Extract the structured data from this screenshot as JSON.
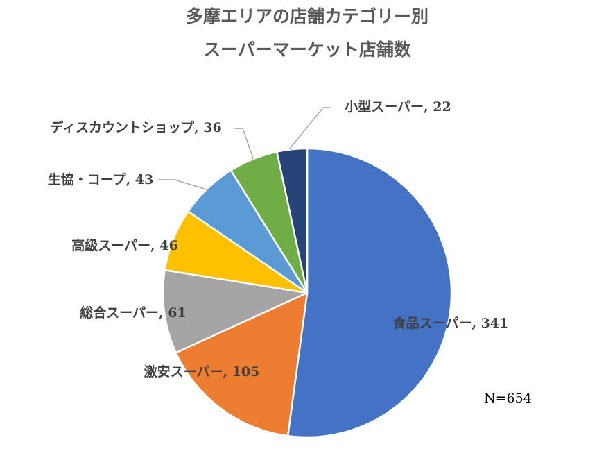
{
  "chart_data": {
    "type": "pie",
    "title": [
      "多摩エリアの店舗カテゴリー別",
      "スーパーマーケット店舗数"
    ],
    "categories": [
      "食品スーパー",
      "激安スーパー",
      "総合スーパー",
      "高級スーパー",
      "生協・コープ",
      "ディスカウントショップ",
      "小型スーパー"
    ],
    "values": [
      341,
      105,
      61,
      46,
      43,
      36,
      22
    ],
    "labels": [
      "食品スーパー, 341",
      "激安スーパー, 105",
      "総合スーパー, 61",
      "高級スーパー, 46",
      "生協・コープ, 43",
      "ディスカウントショップ, 36",
      "小型スーパー, 22"
    ],
    "colors": [
      "#4472C4",
      "#ED7D31",
      "#A5A5A5",
      "#FFC000",
      "#5B9BD5",
      "#70AD47",
      "#264478"
    ],
    "note": "N=654",
    "start": "12 o'clock",
    "direction": "clockwise"
  }
}
